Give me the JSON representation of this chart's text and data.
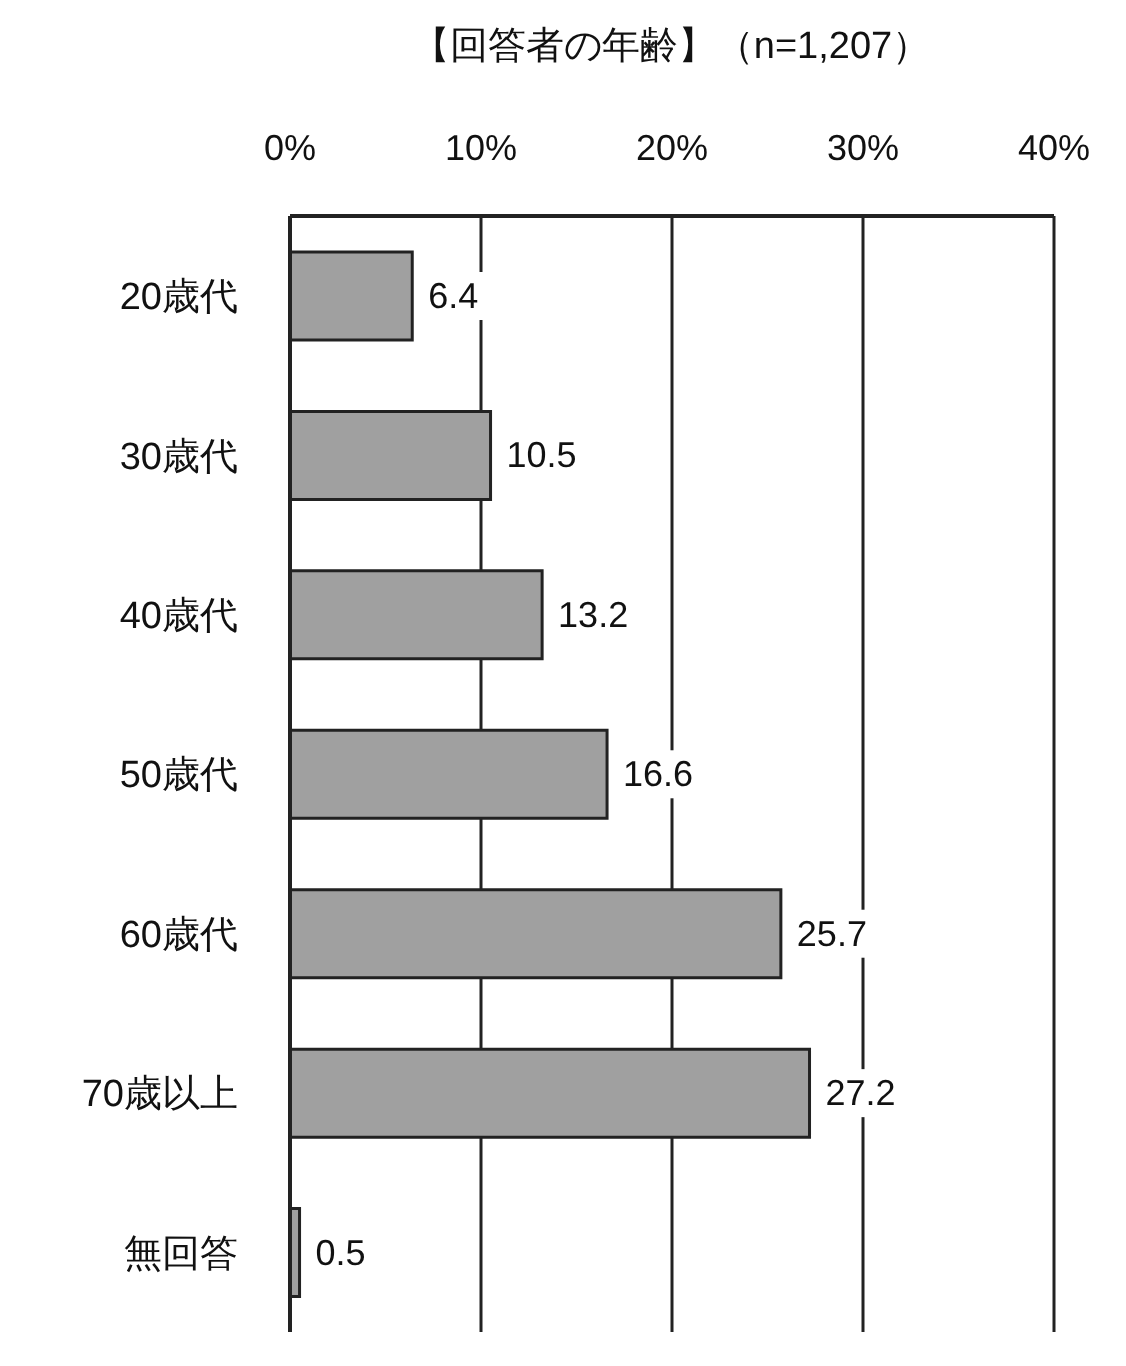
{
  "chart_data": {
    "type": "bar",
    "title": "【回答者の年齢】（n=1,207）",
    "orientation": "horizontal",
    "categories": [
      "20歳代",
      "30歳代",
      "40歳代",
      "50歳代",
      "60歳代",
      "70歳以上",
      "無回答"
    ],
    "values": [
      6.4,
      10.5,
      13.2,
      16.6,
      25.7,
      27.2,
      0.5
    ],
    "color": "#a0a0a0",
    "xlim": [
      0,
      40
    ],
    "xticks": [
      {
        "value": 0,
        "label": "0%"
      },
      {
        "value": 10,
        "label": "10%"
      },
      {
        "value": 20,
        "label": "20%"
      },
      {
        "value": 30,
        "label": "30%"
      },
      {
        "value": 40,
        "label": "40%"
      }
    ],
    "grid": "x",
    "data_labels": true
  }
}
